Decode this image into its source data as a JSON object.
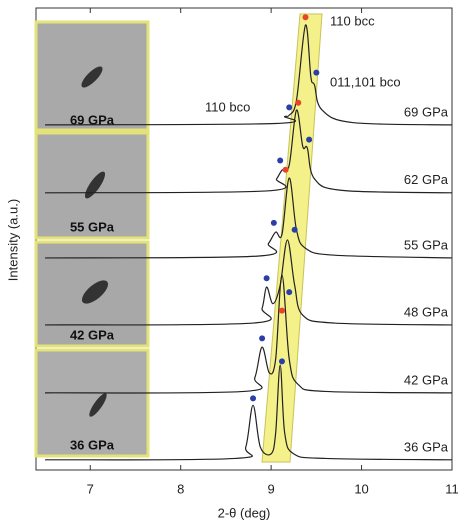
{
  "chart_data": {
    "type": "line",
    "xlabel": "2-θ (deg)",
    "ylabel": "Intensity (a.u.)",
    "xlim": [
      6.4,
      11
    ],
    "ylim": [
      0,
      100
    ],
    "xticks": [
      7,
      8,
      9,
      10,
      11
    ],
    "series": [
      {
        "name": "69 GPa",
        "color": "#222222",
        "x": [
          6.5,
          9.05,
          9.15,
          9.2,
          9.28,
          9.38,
          9.44,
          9.48,
          9.56,
          9.9,
          11
        ],
        "values": [
          74.7,
          75,
          76.5,
          76.8,
          80,
          96.3,
          85,
          83.3,
          78,
          75.2,
          74.7
        ]
      },
      {
        "name": "62 GPa",
        "color": "#222222",
        "x": [
          6.5,
          8.95,
          9.06,
          9.12,
          9.2,
          9.28,
          9.35,
          9.4,
          9.48,
          9.8,
          11
        ],
        "values": [
          60,
          60.4,
          63,
          64.9,
          66,
          77.9,
          70,
          69.7,
          63,
          60.5,
          60
        ]
      },
      {
        "name": "55 GPa",
        "color": "#222222",
        "x": [
          6.5,
          8.85,
          8.97,
          9.05,
          9.12,
          9.2,
          9.28,
          9.38,
          9.7,
          11
        ],
        "values": [
          45.9,
          46.3,
          49,
          51.5,
          51,
          63.2,
          52,
          48,
          46.5,
          45.9
        ]
      },
      {
        "name": "48 GPa",
        "color": "#222222",
        "x": [
          6.5,
          8.8,
          8.9,
          8.95,
          9.02,
          9.1,
          9.18,
          9.26,
          9.35,
          9.7,
          11
        ],
        "values": [
          31.4,
          31.8,
          35,
          39.6,
          36,
          40,
          49.8,
          40,
          33.5,
          31.8,
          31.4
        ]
      },
      {
        "name": "42 GPa",
        "color": "#222222",
        "x": [
          6.5,
          8.7,
          8.82,
          8.9,
          8.98,
          9.05,
          9.12,
          9.2,
          9.3,
          9.6,
          11
        ],
        "values": [
          16.7,
          17,
          20,
          26.6,
          21,
          24,
          42.2,
          24,
          18.5,
          17,
          16.7
        ]
      },
      {
        "name": "36 GPa",
        "color": "#222222",
        "x": [
          6.5,
          8.6,
          8.72,
          8.8,
          8.88,
          9.0,
          9.05,
          9.1,
          9.15,
          9.25,
          9.6,
          11
        ],
        "values": [
          2.2,
          2.5,
          5,
          14,
          5,
          3.5,
          8,
          22.7,
          8,
          3.5,
          2.5,
          2.2
        ]
      }
    ],
    "points": [
      {
        "x": 9.2,
        "y": 78.5,
        "color": "#2b3fa8"
      },
      {
        "x": 9.38,
        "y": 98,
        "color": "#e8442a"
      },
      {
        "x": 9.5,
        "y": 86,
        "color": "#2b3fa8"
      },
      {
        "x": 9.1,
        "y": 67,
        "color": "#2b3fa8"
      },
      {
        "x": 9.3,
        "y": 79.5,
        "color": "#e8442a"
      },
      {
        "x": 9.42,
        "y": 71.5,
        "color": "#2b3fa8"
      },
      {
        "x": 9.03,
        "y": 53.5,
        "color": "#2b3fa8"
      },
      {
        "x": 9.16,
        "y": 65,
        "color": "#e8442a"
      },
      {
        "x": 9.26,
        "y": 52,
        "color": "#2b3fa8"
      },
      {
        "x": 8.95,
        "y": 41.5,
        "color": "#2b3fa8"
      },
      {
        "x": 9.12,
        "y": 34.5,
        "color": "#e8442a"
      },
      {
        "x": 9.2,
        "y": 38.5,
        "color": "#2b3fa8"
      },
      {
        "x": 8.9,
        "y": 28.5,
        "color": "#2b3fa8"
      },
      {
        "x": 9.12,
        "y": 23.5,
        "color": "#2b3fa8"
      },
      {
        "x": 8.8,
        "y": 15.5,
        "color": "#2b3fa8"
      }
    ],
    "annotations": [
      "110 bcc",
      "011,101 bco",
      "110 bco"
    ],
    "inset_labels": [
      "69 GPa",
      "55 GPa",
      "42 GPa",
      "36 GPa"
    ]
  }
}
